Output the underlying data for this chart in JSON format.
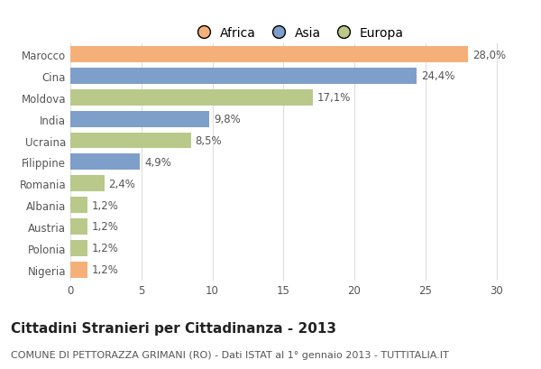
{
  "categories": [
    "Marocco",
    "Cina",
    "Moldova",
    "India",
    "Ucraina",
    "Filippine",
    "Romania",
    "Albania",
    "Austria",
    "Polonia",
    "Nigeria"
  ],
  "values": [
    28.0,
    24.4,
    17.1,
    9.8,
    8.5,
    4.9,
    2.4,
    1.2,
    1.2,
    1.2,
    1.2
  ],
  "labels": [
    "28,0%",
    "24,4%",
    "17,1%",
    "9,8%",
    "8,5%",
    "4,9%",
    "2,4%",
    "1,2%",
    "1,2%",
    "1,2%",
    "1,2%"
  ],
  "continents": [
    "Africa",
    "Asia",
    "Europa",
    "Asia",
    "Europa",
    "Asia",
    "Europa",
    "Europa",
    "Europa",
    "Europa",
    "Africa"
  ],
  "colors": {
    "Africa": "#F5B07A",
    "Asia": "#7E9FC9",
    "Europa": "#B8C98A"
  },
  "legend_labels": [
    "Africa",
    "Asia",
    "Europa"
  ],
  "xlim": [
    0,
    32
  ],
  "xticks": [
    0,
    5,
    10,
    15,
    20,
    25,
    30
  ],
  "title": "Cittadini Stranieri per Cittadinanza - 2013",
  "subtitle": "COMUNE DI PETTORAZZA GRIMANI (RO) - Dati ISTAT al 1° gennaio 2013 - TUTTITALIA.IT",
  "title_fontsize": 11,
  "subtitle_fontsize": 8,
  "bar_height": 0.75,
  "background_color": "#ffffff",
  "grid_color": "#dddddd",
  "label_fontsize": 8.5,
  "tick_fontsize": 8.5,
  "legend_fontsize": 10
}
